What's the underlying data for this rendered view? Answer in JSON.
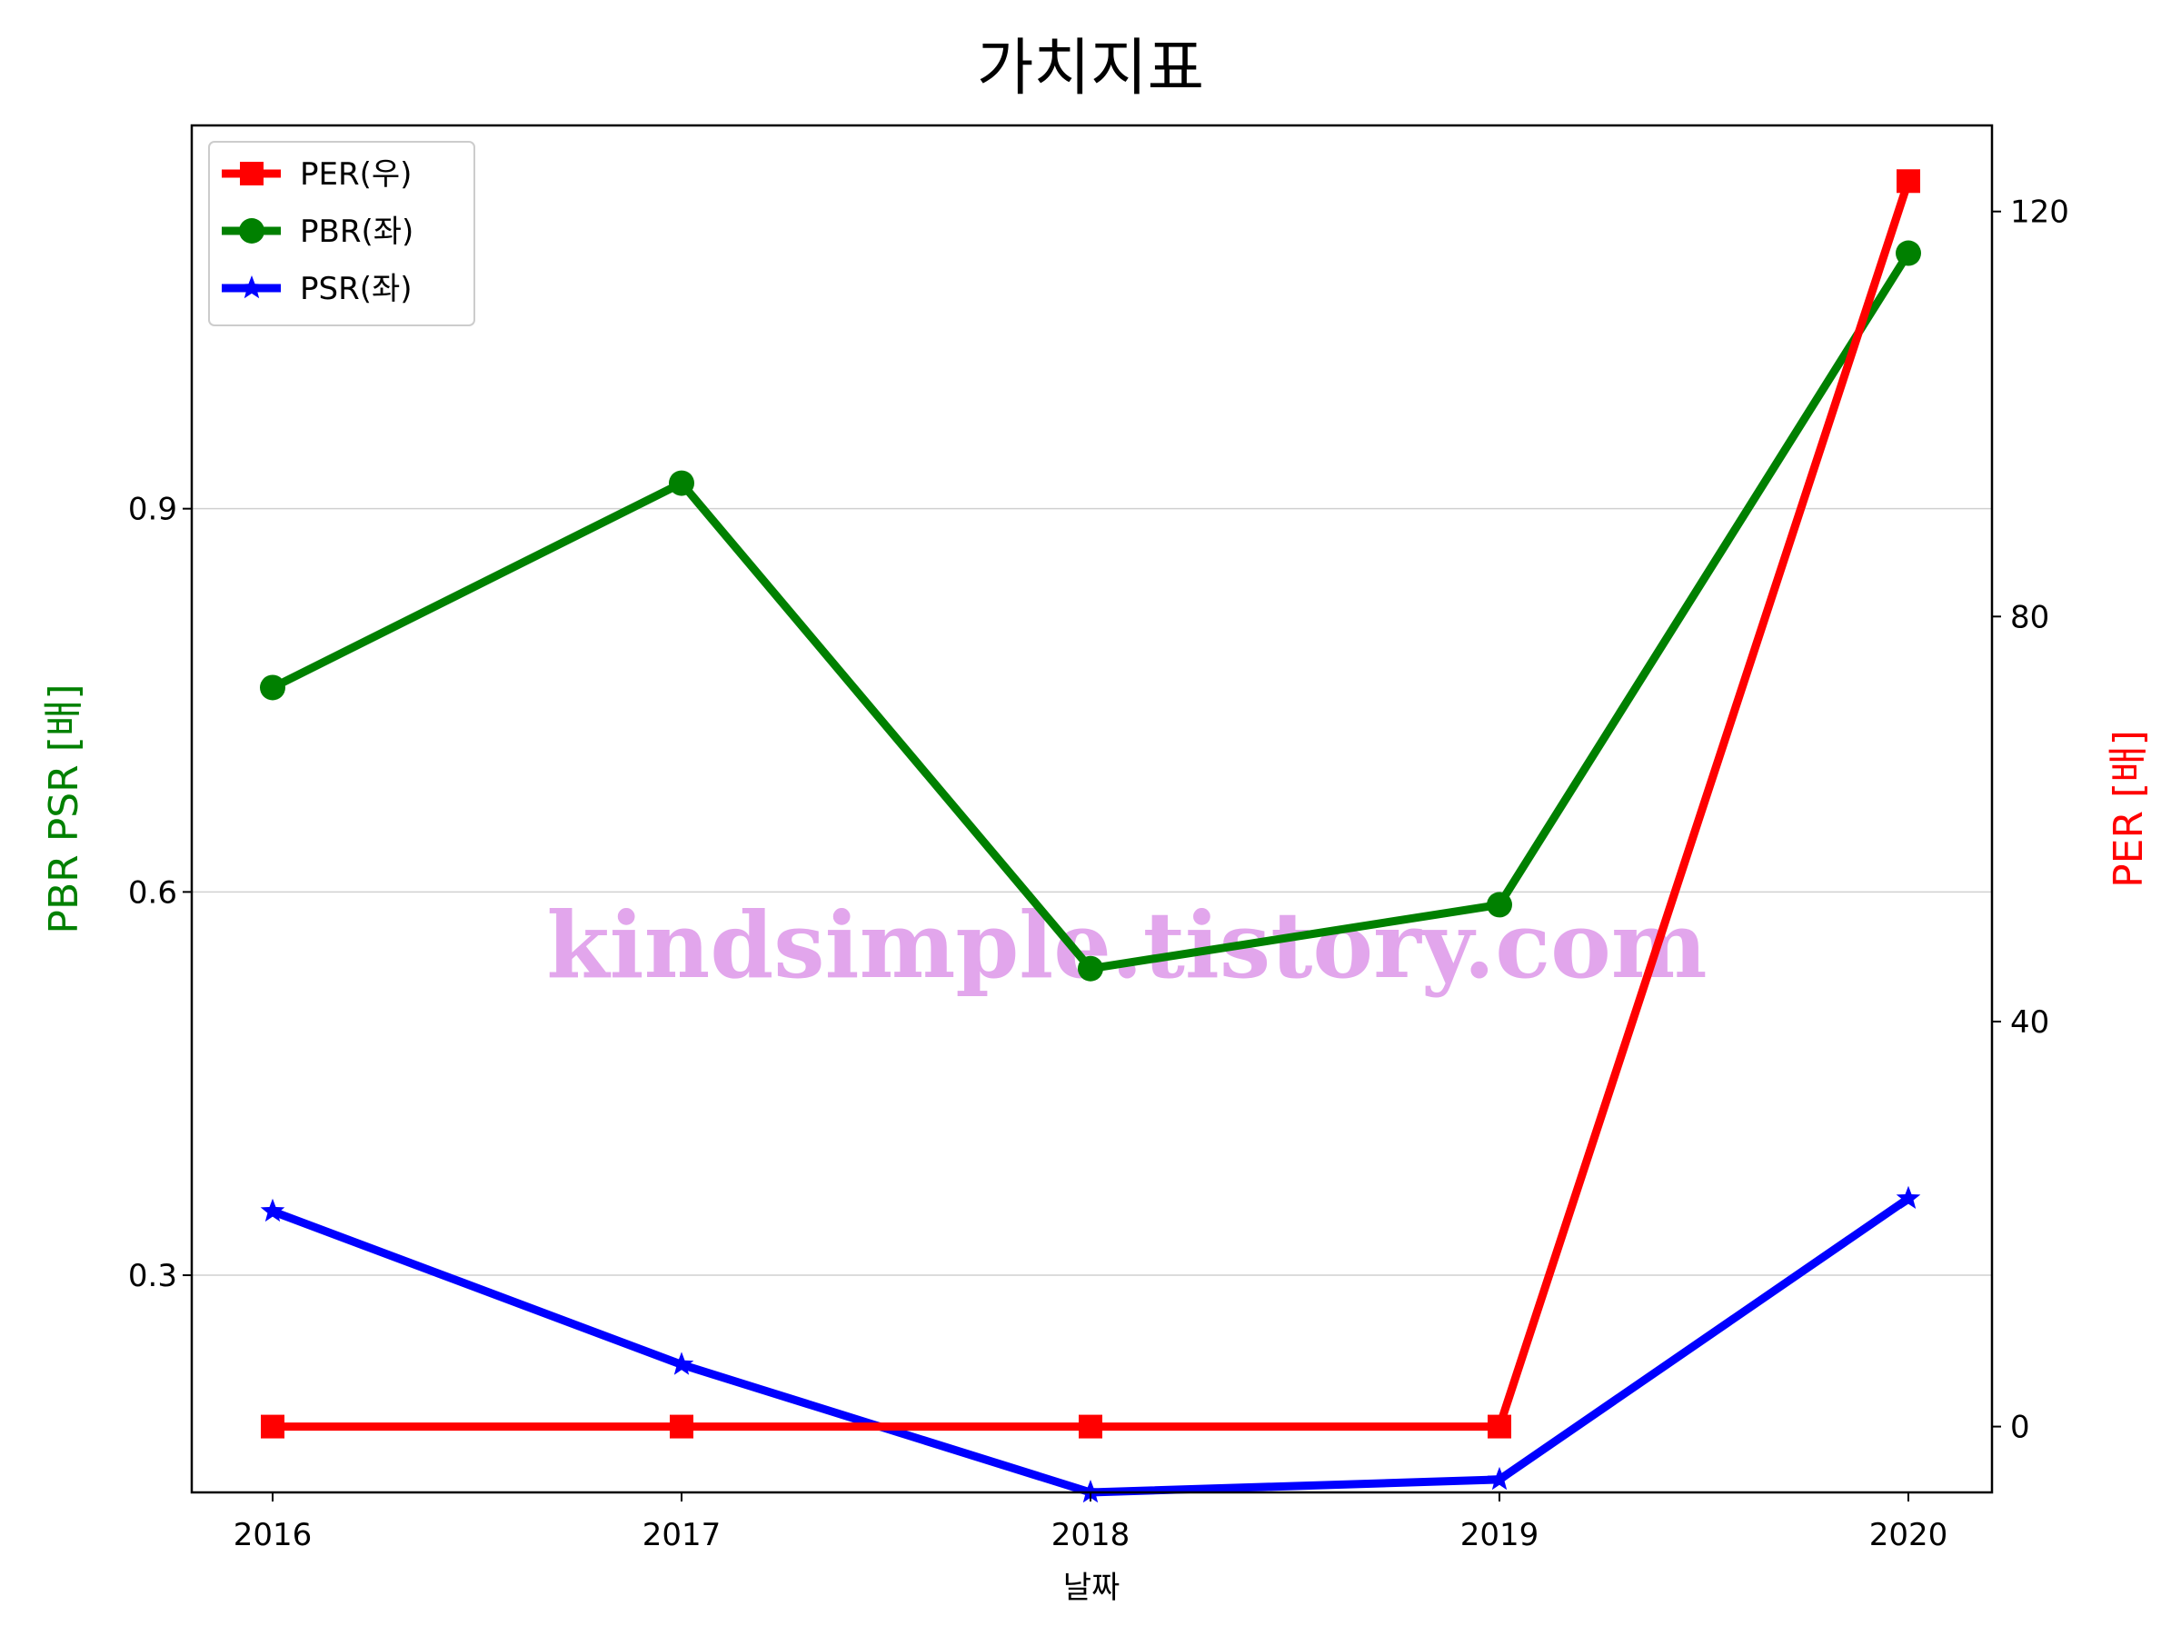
{
  "chart_data": {
    "type": "line",
    "title": "가치지표",
    "xlabel": "날짜",
    "ylabel_left": "PBR PSR [배]",
    "ylabel_right": "PER [배]",
    "categories": [
      "2016",
      "2017",
      "2018",
      "2019",
      "2020"
    ],
    "ylim_left": [
      0.13,
      1.2
    ],
    "ylim_right": [
      -6.5,
      128.5
    ],
    "yticks_left": [
      0.3,
      0.6,
      0.9
    ],
    "yticks_right": [
      0,
      40,
      80,
      120
    ],
    "grid": "horizontal (left axis)",
    "legend_position": "top-left",
    "series": [
      {
        "name": "PER(우)",
        "axis": "right",
        "color": "#ff0000",
        "marker": "square",
        "values": [
          0,
          0,
          0,
          0,
          123
        ]
      },
      {
        "name": "PBR(좌)",
        "axis": "left",
        "color": "#008000",
        "marker": "circle",
        "values": [
          0.76,
          0.92,
          0.54,
          0.59,
          1.1
        ]
      },
      {
        "name": "PSR(좌)",
        "axis": "left",
        "color": "#0000ff",
        "marker": "star",
        "values": [
          0.35,
          0.23,
          0.13,
          0.14,
          0.36
        ]
      }
    ],
    "left_label_color": "#008000",
    "right_label_color": "#ff0000"
  },
  "watermark": "kindsimple.tistory.com"
}
